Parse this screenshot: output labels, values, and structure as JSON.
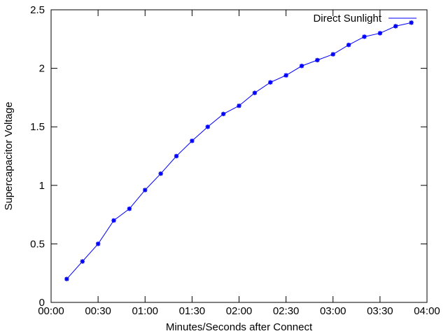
{
  "chart_data": {
    "type": "line",
    "title": "",
    "xlabel": "Minutes/Seconds after Connect",
    "ylabel": "Supercapacitor Voltage",
    "xlim": [
      "00:00",
      "04:00"
    ],
    "ylim": [
      0,
      2.5
    ],
    "x_ticks": [
      "00:00",
      "00:30",
      "01:00",
      "01:30",
      "02:00",
      "02:30",
      "03:00",
      "03:30",
      "04:00"
    ],
    "y_ticks": [
      "0",
      "0.5",
      "1",
      "1.5",
      "2",
      "2.5"
    ],
    "grid": false,
    "legend_position": "top-right",
    "series": [
      {
        "name": "Direct Sunlight",
        "color": "#0000ff",
        "marker": "asterisk",
        "x": [
          "00:10",
          "00:20",
          "00:30",
          "00:40",
          "00:50",
          "01:00",
          "01:10",
          "01:20",
          "01:30",
          "01:40",
          "01:50",
          "02:00",
          "02:10",
          "02:20",
          "02:30",
          "02:40",
          "02:50",
          "03:00",
          "03:10",
          "03:20",
          "03:30",
          "03:40",
          "03:50"
        ],
        "values": [
          0.2,
          0.35,
          0.5,
          0.7,
          0.8,
          0.96,
          1.1,
          1.25,
          1.38,
          1.5,
          1.61,
          1.68,
          1.79,
          1.88,
          1.94,
          2.02,
          2.07,
          2.12,
          2.2,
          2.27,
          2.3,
          2.36,
          2.39
        ]
      }
    ]
  }
}
